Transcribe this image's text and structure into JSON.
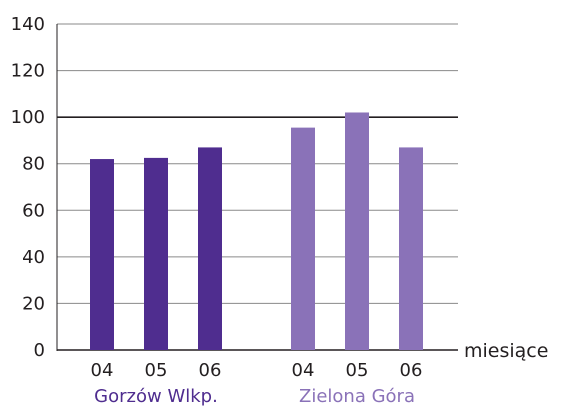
{
  "chart_data": {
    "type": "bar",
    "xlabel": "miesiące",
    "ylabel": "",
    "ylim": [
      0,
      140
    ],
    "yticks": [
      0,
      20,
      40,
      60,
      80,
      100,
      120,
      140
    ],
    "grid": true,
    "reference_line": 100,
    "groups": [
      {
        "label": "Gorzów Wlkp.",
        "color": "#4f2d8f",
        "categories": [
          "04",
          "05",
          "06"
        ],
        "values": [
          82,
          82.5,
          87
        ]
      },
      {
        "label": "Zielona Góra",
        "color": "#8a72b8",
        "categories": [
          "04",
          "05",
          "06"
        ],
        "values": [
          95.5,
          102,
          87
        ]
      }
    ]
  }
}
